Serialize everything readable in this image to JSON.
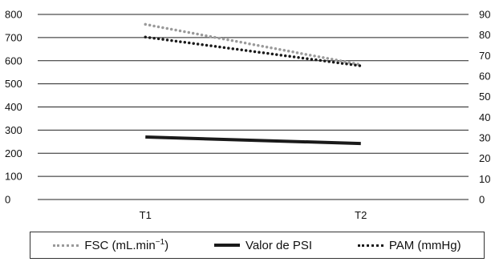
{
  "chart_data": {
    "type": "line",
    "categories": [
      "T1",
      "T2"
    ],
    "y_left": {
      "ticks": [
        0,
        100,
        200,
        300,
        400,
        500,
        600,
        700,
        800
      ],
      "ylim": [
        0,
        800
      ]
    },
    "y_right": {
      "ticks": [
        0,
        10,
        20,
        30,
        40,
        50,
        60,
        70,
        80,
        90
      ],
      "ylim": [
        0,
        90
      ]
    },
    "grid": true,
    "legend_position": "bottom",
    "series": [
      {
        "name": "FSC (mL.min",
        "name_sup": "−1",
        "name_tail": ")",
        "axis": "left",
        "values": [
          757,
          583
        ],
        "style": "dotted",
        "color": "#9a9a9a"
      },
      {
        "name": "Valor de PSI",
        "axis": "left",
        "values": [
          270,
          242
        ],
        "style": "solid",
        "color": "#1a1a1a"
      },
      {
        "name": "PAM (mmHg)",
        "axis": "right",
        "values": [
          79,
          65
        ],
        "style": "dotted",
        "color": "#1a1a1a"
      }
    ]
  }
}
